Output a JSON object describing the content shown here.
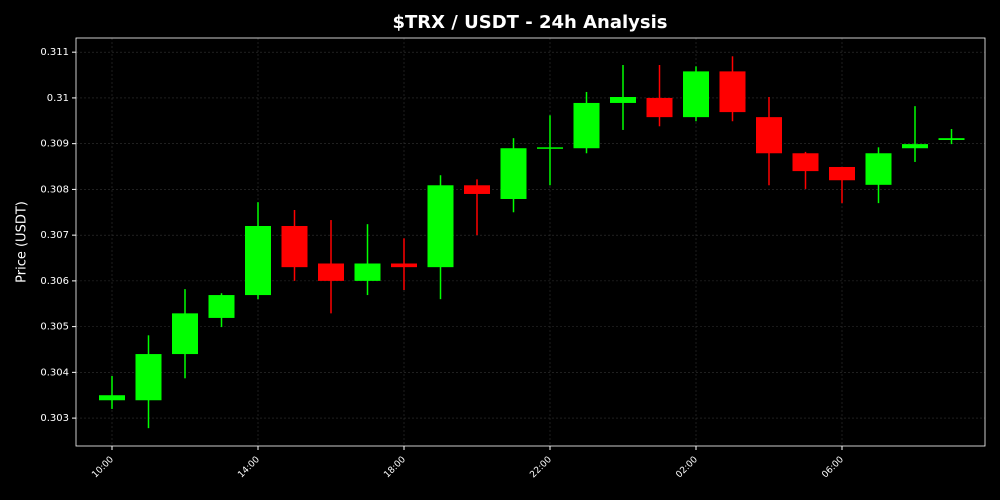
{
  "chart_data": {
    "type": "candlestick",
    "title": "$TRX / USDT - 24h Analysis",
    "y_label": "Price (USDT)",
    "categories": [
      "10:00",
      null,
      null,
      null,
      "14:00",
      null,
      null,
      null,
      "18:00",
      null,
      null,
      null,
      "22:00",
      null,
      null,
      null,
      "02:00",
      null,
      null,
      null,
      "06:00",
      null,
      null,
      null
    ],
    "open": [
      0.30339,
      0.30339,
      0.3044,
      0.30519,
      0.30569,
      0.3072,
      0.30638,
      0.306,
      0.30638,
      0.3063,
      0.30809,
      0.30779,
      0.3089,
      0.3089,
      0.30989,
      0.31,
      0.30958,
      0.31058,
      0.30958,
      0.30879,
      0.30849,
      0.3081,
      0.3089,
      0.30908
    ],
    "high": [
      0.30392,
      0.30481,
      0.30582,
      0.30573,
      0.30772,
      0.30755,
      0.30733,
      0.30724,
      0.30693,
      0.30831,
      0.30822,
      0.30912,
      0.30962,
      0.31013,
      0.31072,
      0.31072,
      0.31069,
      0.31091,
      0.31002,
      0.30882,
      0.30849,
      0.30892,
      0.30982,
      0.30932
    ],
    "low": [
      0.3032,
      0.30278,
      0.30387,
      0.30499,
      0.3056,
      0.306,
      0.30529,
      0.30569,
      0.3058,
      0.3056,
      0.307,
      0.3075,
      0.30809,
      0.30879,
      0.3093,
      0.30938,
      0.30949,
      0.30949,
      0.30809,
      0.30801,
      0.3077,
      0.3077,
      0.3086,
      0.30899
    ],
    "close": [
      0.3035,
      0.3044,
      0.30529,
      0.30569,
      0.3072,
      0.3063,
      0.306,
      0.30638,
      0.3063,
      0.30809,
      0.3079,
      0.3089,
      0.30892,
      0.30989,
      0.31002,
      0.30958,
      0.31058,
      0.30969,
      0.30879,
      0.3084,
      0.3082,
      0.30879,
      0.30899,
      0.30912
    ],
    "up_color": "#00ff00",
    "down_color": "#ff0000",
    "ylim": [
      0.30239,
      0.31131
    ],
    "yticks": [
      0.303,
      0.304,
      0.305,
      0.306,
      0.307,
      0.308,
      0.309,
      0.31,
      0.311
    ],
    "grid": true
  }
}
